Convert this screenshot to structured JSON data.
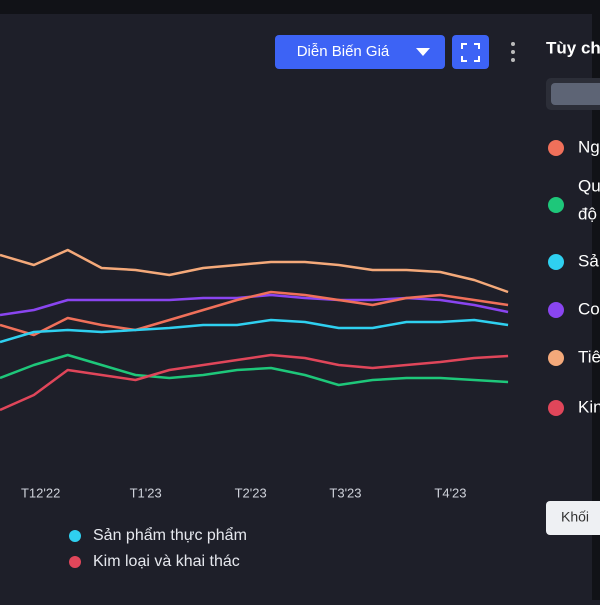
{
  "toolbar": {
    "view_button": "Diễn Biến Giá"
  },
  "side_panel": {
    "title": "Tùy ch",
    "items": [
      "Ng",
      "Qu",
      "độ",
      "Sả",
      "Co",
      "Tiê",
      "Kin"
    ],
    "button": "Khối"
  },
  "chart_data": {
    "type": "line",
    "x": [
      -12,
      -2,
      8,
      18,
      28,
      38,
      48,
      58,
      68,
      78,
      88,
      98,
      108,
      118,
      128,
      138
    ],
    "xlim": [
      -12,
      143
    ],
    "xticks": [
      {
        "value": 0,
        "label": "T12'22"
      },
      {
        "value": 31,
        "label": "T1'23"
      },
      {
        "value": 62,
        "label": "T2'23"
      },
      {
        "value": 90,
        "label": "T3'23"
      },
      {
        "value": 121,
        "label": "T4'23"
      }
    ],
    "ylim": [
      0,
      230
    ],
    "series": [
      {
        "color": "#f4a97a",
        "values": [
          175,
          165,
          180,
          162,
          160,
          155,
          162,
          165,
          168,
          168,
          165,
          160,
          160,
          158,
          150,
          138
        ]
      },
      {
        "color": "#8a45f0",
        "values": [
          115,
          120,
          130,
          130,
          130,
          130,
          132,
          132,
          135,
          132,
          130,
          130,
          132,
          130,
          125,
          118
        ]
      },
      {
        "color": "#f0705a",
        "values": [
          105,
          95,
          112,
          105,
          100,
          110,
          120,
          130,
          138,
          135,
          130,
          125,
          132,
          135,
          130,
          125
        ]
      },
      {
        "name": "Sản phẩm thực phẩm",
        "color": "#2fd0f0",
        "values": [
          88,
          98,
          100,
          98,
          100,
          102,
          105,
          105,
          110,
          108,
          102,
          102,
          108,
          108,
          110,
          105
        ]
      },
      {
        "color": "#1ec77a",
        "values": [
          52,
          65,
          75,
          65,
          55,
          52,
          55,
          60,
          62,
          55,
          45,
          50,
          52,
          52,
          50,
          48
        ]
      },
      {
        "name": "Kim loại và khai thác",
        "color": "#e0465a",
        "values": [
          20,
          35,
          60,
          55,
          50,
          60,
          65,
          70,
          75,
          72,
          65,
          62,
          65,
          68,
          72,
          74
        ]
      }
    ],
    "legend_colors": [
      "#f0705a",
      "#1ec77a",
      "#2fd0f0",
      "#8a45f0",
      "#f4a97a",
      "#e0465a"
    ]
  }
}
